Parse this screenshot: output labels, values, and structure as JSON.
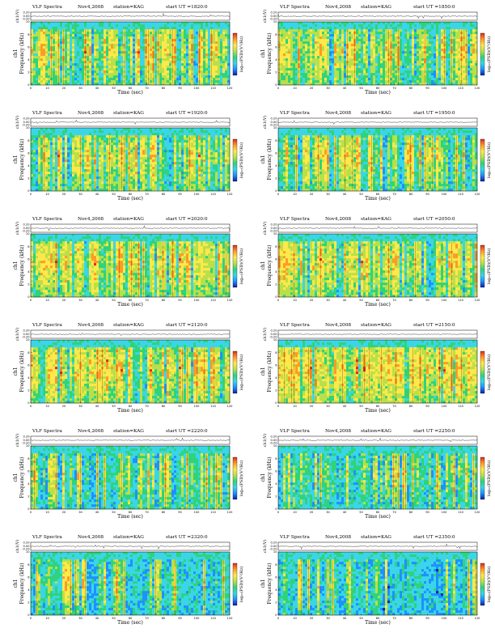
{
  "page": {
    "background": "#ffffff"
  },
  "colorbar": {
    "label": "log₁₀(PSD)(V²/Hz)",
    "stops": [
      "#0a1ea8",
      "#1e90ff",
      "#3ad6e8",
      "#2fd37a",
      "#b8e04a",
      "#ffe94a",
      "#ff9a28",
      "#e12a1c"
    ]
  },
  "chart_data": [
    {
      "type": "heatmap",
      "title": "VLF Spectra",
      "date": "Nov4,2008",
      "station": "station=KAG",
      "start_ut": "start UT =1820:0",
      "top_ylabel": "ch1(V)",
      "top_yticks": [
        "0.20",
        "0.00",
        "-0.20"
      ],
      "ylabel": "Frequency (kHz)",
      "ylabel_prefix": "ch1",
      "yticks": [
        "0",
        "2",
        "4",
        "6",
        "8",
        "10"
      ],
      "ylim": [
        0,
        10
      ],
      "xlabel": "Time (sec)",
      "xticks": [
        "0",
        "10",
        "20",
        "30",
        "40",
        "50",
        "60",
        "70",
        "80",
        "90",
        "100",
        "110",
        "120"
      ],
      "xlim": [
        0,
        120
      ],
      "activity": 0.62
    },
    {
      "type": "heatmap",
      "title": "VLF Spectra",
      "date": "Nov4,2008",
      "station": "station=KAG",
      "start_ut": "start UT =1850:0",
      "top_ylabel": "ch1(V)",
      "top_yticks": [
        "0.20",
        "0.00",
        "-0.20"
      ],
      "ylabel": "Frequency (kHz)",
      "ylabel_prefix": "ch1",
      "yticks": [
        "0",
        "2",
        "4",
        "6",
        "8",
        "10"
      ],
      "ylim": [
        0,
        10
      ],
      "xlabel": "Time (sec)",
      "xticks": [
        "0",
        "10",
        "20",
        "30",
        "40",
        "50",
        "60",
        "70",
        "80",
        "90",
        "100",
        "110",
        "120"
      ],
      "xlim": [
        0,
        120
      ],
      "activity": 0.6
    },
    {
      "type": "heatmap",
      "title": "VLF Spectra",
      "date": "Nov4,2008",
      "station": "station=KAG",
      "start_ut": "start UT =1920:0",
      "top_ylabel": "ch1(V)",
      "top_yticks": [
        "0.20",
        "0.00",
        "-0.20"
      ],
      "ylabel": "Frequency (kHz)",
      "ylabel_prefix": "ch1",
      "yticks": [
        "0",
        "2",
        "4",
        "6",
        "8",
        "10"
      ],
      "ylim": [
        0,
        10
      ],
      "xlabel": "Time (sec)",
      "xticks": [
        "0",
        "10",
        "20",
        "30",
        "40",
        "50",
        "60",
        "70",
        "80",
        "90",
        "100",
        "110",
        "120"
      ],
      "xlim": [
        0,
        120
      ],
      "activity": 0.58
    },
    {
      "type": "heatmap",
      "title": "VLF Spectra",
      "date": "Nov4,2008",
      "station": "station=KAG",
      "start_ut": "start UT =1950:0",
      "top_ylabel": "ch1(V)",
      "top_yticks": [
        "0.20",
        "0.00",
        "-0.20"
      ],
      "ylabel": "Frequency (kHz)",
      "ylabel_prefix": "ch1",
      "yticks": [
        "0",
        "2",
        "4",
        "6",
        "8",
        "10"
      ],
      "ylim": [
        0,
        10
      ],
      "xlabel": "Time (sec)",
      "xticks": [
        "0",
        "10",
        "20",
        "30",
        "40",
        "50",
        "60",
        "70",
        "80",
        "90",
        "100",
        "110",
        "120"
      ],
      "xlim": [
        0,
        120
      ],
      "activity": 0.5
    },
    {
      "type": "heatmap",
      "title": "VLF Spectra",
      "date": "Nov4,2008",
      "station": "station=KAG",
      "start_ut": "start UT =2020:0",
      "top_ylabel": "ch1(V)",
      "top_yticks": [
        "0.20",
        "0.00",
        "-0.20"
      ],
      "ylabel": "Frequency (kHz)",
      "ylabel_prefix": "ch1",
      "yticks": [
        "0",
        "2",
        "4",
        "6",
        "8",
        "10"
      ],
      "ylim": [
        0,
        10
      ],
      "xlabel": "Time (sec)",
      "xticks": [
        "0",
        "10",
        "20",
        "30",
        "40",
        "50",
        "60",
        "70",
        "80",
        "90",
        "100",
        "110",
        "120"
      ],
      "xlim": [
        0,
        120
      ],
      "activity": 0.7
    },
    {
      "type": "heatmap",
      "title": "VLF Spectra",
      "date": "Nov4,2008",
      "station": "station=KAG",
      "start_ut": "start UT =2050:0",
      "top_ylabel": "ch1(V)",
      "top_yticks": [
        "0.20",
        "0.00",
        "-0.20"
      ],
      "ylabel": "Frequency (kHz)",
      "ylabel_prefix": "ch1",
      "yticks": [
        "0",
        "2",
        "4",
        "6",
        "8",
        "10"
      ],
      "ylim": [
        0,
        10
      ],
      "xlabel": "Time (sec)",
      "xticks": [
        "0",
        "10",
        "20",
        "30",
        "40",
        "50",
        "60",
        "70",
        "80",
        "90",
        "100",
        "110",
        "120"
      ],
      "xlim": [
        0,
        120
      ],
      "activity": 0.66
    },
    {
      "type": "heatmap",
      "title": "VLF Spectra",
      "date": "Nov4,2008",
      "station": "station=KAG",
      "start_ut": "start UT =2120:0",
      "top_ylabel": "ch1(V)",
      "top_yticks": [
        "0.20",
        "0.00",
        "-0.20"
      ],
      "ylabel": "Frequency (kHz)",
      "ylabel_prefix": "ch1",
      "yticks": [
        "0",
        "2",
        "4",
        "6",
        "8",
        "10"
      ],
      "ylim": [
        0,
        10
      ],
      "xlabel": "Time (sec)",
      "xticks": [
        "0",
        "10",
        "20",
        "30",
        "40",
        "50",
        "60",
        "70",
        "80",
        "90",
        "100",
        "110",
        "120"
      ],
      "xlim": [
        0,
        120
      ],
      "activity": 0.72
    },
    {
      "type": "heatmap",
      "title": "VLF Spectra",
      "date": "Nov4,2008",
      "station": "station=KAG",
      "start_ut": "start UT =2150:0",
      "top_ylabel": "ch1(V)",
      "top_yticks": [
        "0.20",
        "0.00",
        "-0.20"
      ],
      "ylabel": "Frequency (kHz)",
      "ylabel_prefix": "ch1",
      "yticks": [
        "0",
        "2",
        "4",
        "6",
        "8",
        "10"
      ],
      "ylim": [
        0,
        10
      ],
      "xlabel": "Time (sec)",
      "xticks": [
        "0",
        "10",
        "20",
        "30",
        "40",
        "50",
        "60",
        "70",
        "80",
        "90",
        "100",
        "110",
        "120"
      ],
      "xlim": [
        0,
        120
      ],
      "activity": 0.8
    },
    {
      "type": "heatmap",
      "title": "VLF Spectra",
      "date": "Nov4,2008",
      "station": "station=KAG",
      "start_ut": "start UT =2220:0",
      "top_ylabel": "ch1(V)",
      "top_yticks": [
        "0.20",
        "0.00",
        "-0.20"
      ],
      "ylabel": "Frequency (kHz)",
      "ylabel_prefix": "ch1",
      "yticks": [
        "0",
        "2",
        "4",
        "6",
        "8",
        "10"
      ],
      "ylim": [
        0,
        10
      ],
      "xlabel": "Time (sec)",
      "xticks": [
        "0",
        "10",
        "20",
        "30",
        "40",
        "50",
        "60",
        "70",
        "80",
        "90",
        "100",
        "110",
        "120"
      ],
      "xlim": [
        0,
        120
      ],
      "activity": 0.4
    },
    {
      "type": "heatmap",
      "title": "VLF Spectra",
      "date": "Nov4,2008",
      "station": "station=KAG",
      "start_ut": "start UT =2250:0",
      "top_ylabel": "ch1(V)",
      "top_yticks": [
        "0.20",
        "0.00",
        "-0.20"
      ],
      "ylabel": "Frequency (kHz)",
      "ylabel_prefix": "ch1",
      "yticks": [
        "0",
        "2",
        "4",
        "6",
        "8",
        "10"
      ],
      "ylim": [
        0,
        10
      ],
      "xlabel": "Time (sec)",
      "xticks": [
        "0",
        "10",
        "20",
        "30",
        "40",
        "50",
        "60",
        "70",
        "80",
        "90",
        "100",
        "110",
        "120"
      ],
      "xlim": [
        0,
        120
      ],
      "activity": 0.38
    },
    {
      "type": "heatmap",
      "title": "VLF Spectra",
      "date": "Nov4,2008",
      "station": "station=KAG",
      "start_ut": "start UT =2320:0",
      "top_ylabel": "ch1(V)",
      "top_yticks": [
        "0.20",
        "0.00",
        "-0.20"
      ],
      "ylabel": "Frequency (kHz)",
      "ylabel_prefix": "ch1",
      "yticks": [
        "0",
        "2",
        "4",
        "6",
        "8",
        "10"
      ],
      "ylim": [
        0,
        10
      ],
      "xlabel": "Time (sec)",
      "xticks": [
        "0",
        "10",
        "20",
        "30",
        "40",
        "50",
        "60",
        "70",
        "80",
        "90",
        "100",
        "110",
        "120"
      ],
      "xlim": [
        0,
        120
      ],
      "activity": 0.3
    },
    {
      "type": "heatmap",
      "title": "VLF Spectra",
      "date": "Nov4,2008",
      "station": "station=KAG",
      "start_ut": "start UT =2350:0",
      "top_ylabel": "ch1(V)",
      "top_yticks": [
        "0.20",
        "0.00",
        "-0.20"
      ],
      "ylabel": "Frequency (kHz)",
      "ylabel_prefix": "ch1",
      "yticks": [
        "0",
        "2",
        "4",
        "6",
        "8",
        "10"
      ],
      "ylim": [
        0,
        10
      ],
      "xlabel": "Time (sec)",
      "xticks": [
        "0",
        "10",
        "20",
        "30",
        "40",
        "50",
        "60",
        "70",
        "80",
        "90",
        "100",
        "110",
        "120"
      ],
      "xlim": [
        0,
        120
      ],
      "activity": 0.2
    }
  ]
}
